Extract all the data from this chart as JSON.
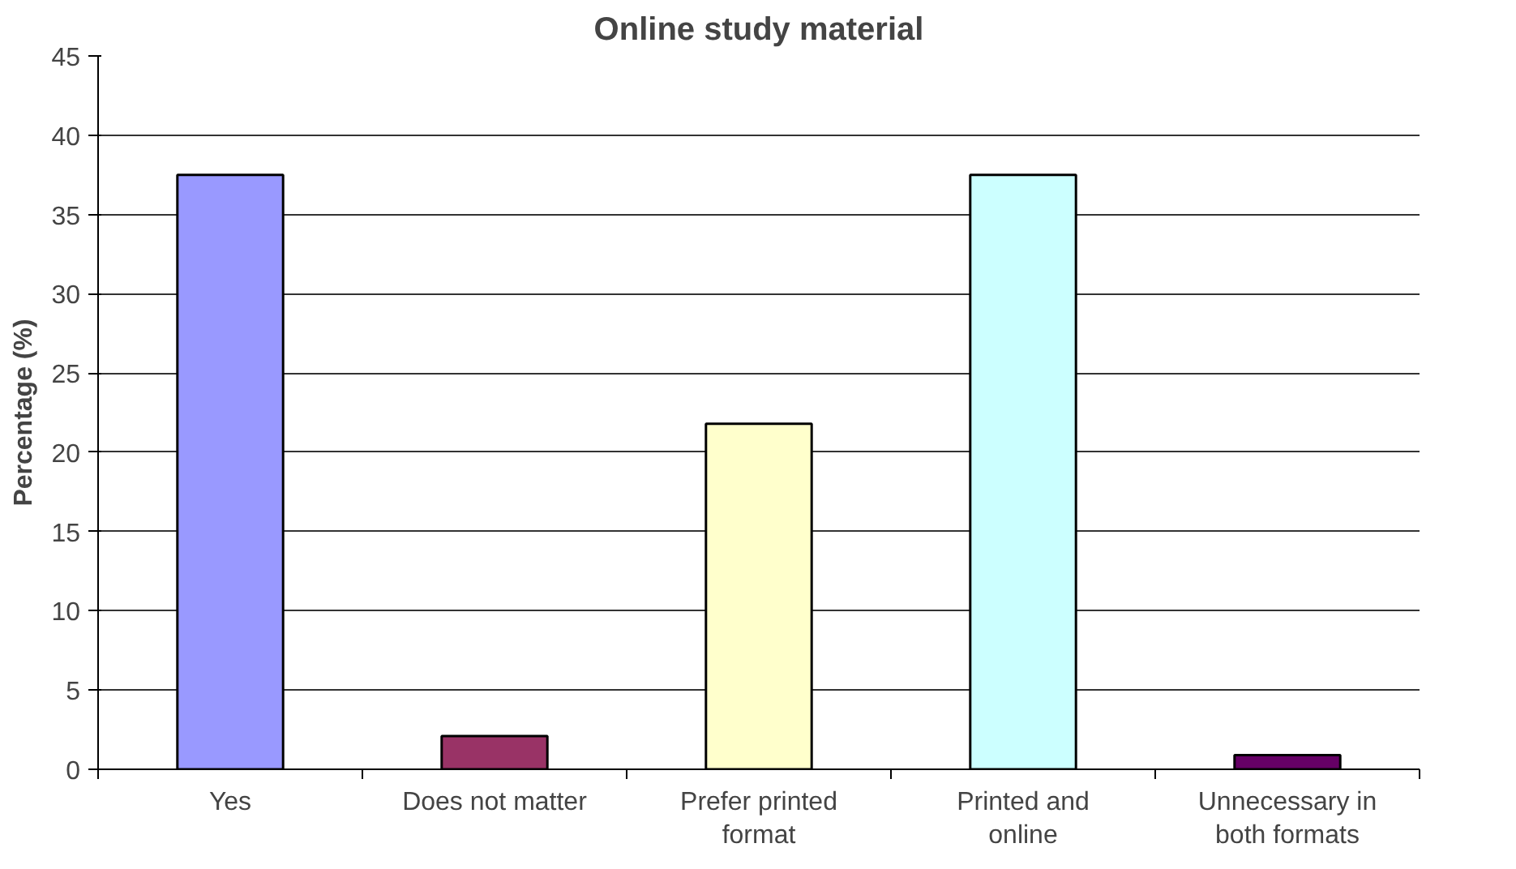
{
  "chart_data": {
    "type": "bar",
    "title": "Online study material",
    "ylabel": "Percentage (%)",
    "categories": [
      "Yes",
      "Does not matter",
      "Prefer printed format",
      "Printed and online",
      "Unnecessary in both formats"
    ],
    "values": [
      37.5,
      2.1,
      21.8,
      37.5,
      0.9
    ],
    "colors": [
      "#9999ff",
      "#993366",
      "#ffffcc",
      "#ccffff",
      "#660066"
    ],
    "ylim": [
      0,
      45
    ],
    "yticks": [
      0,
      5,
      10,
      15,
      20,
      25,
      30,
      35,
      40,
      45
    ],
    "grid": "y"
  }
}
